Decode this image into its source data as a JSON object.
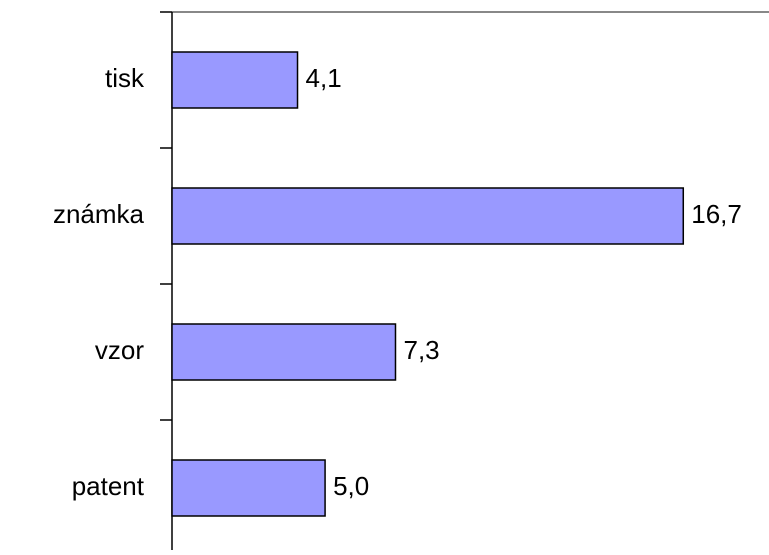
{
  "chart_data": {
    "type": "barh",
    "categories": [
      "tisk",
      "známka",
      "vzor",
      "patent"
    ],
    "values": [
      4.1,
      16.7,
      7.3,
      5.0
    ],
    "value_labels": [
      "4,1",
      "16,7",
      "7,3",
      "5,0"
    ],
    "color": "#9999ff",
    "xlim": [
      0,
      19.5
    ]
  }
}
